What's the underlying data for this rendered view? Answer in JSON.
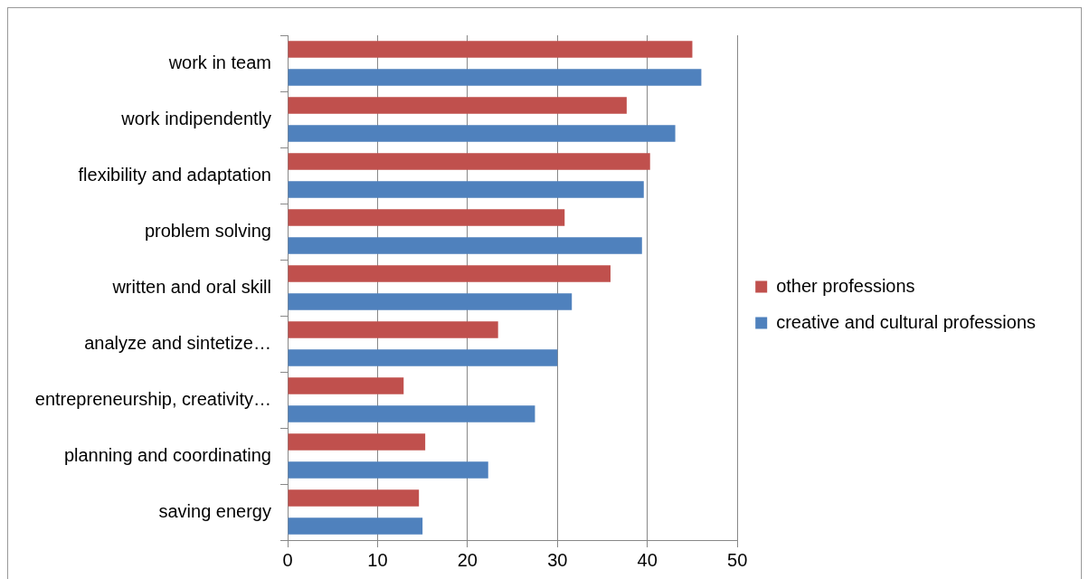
{
  "chart_data": {
    "type": "bar",
    "orientation": "horizontal",
    "categories": [
      "work in team",
      "work indipendently",
      "flexibility and adaptation",
      "problem solving",
      "written and oral skill",
      "analyze and sintetize…",
      "entrepreneurship, creativity…",
      "planning and coordinating",
      "saving energy"
    ],
    "series": [
      {
        "name": "other professions",
        "color": "#c0504d",
        "values": [
          45.0,
          37.7,
          40.3,
          30.8,
          35.9,
          23.4,
          12.9,
          15.3,
          14.6
        ]
      },
      {
        "name": "creative and cultural professions",
        "color": "#4f81bd",
        "values": [
          46.0,
          43.1,
          39.6,
          39.4,
          31.6,
          30.0,
          27.5,
          22.3,
          15.0
        ]
      }
    ],
    "xlim": [
      0,
      50
    ],
    "xticks": [
      0,
      10,
      20,
      30,
      40,
      50
    ],
    "grid": "x",
    "legend": "right"
  }
}
